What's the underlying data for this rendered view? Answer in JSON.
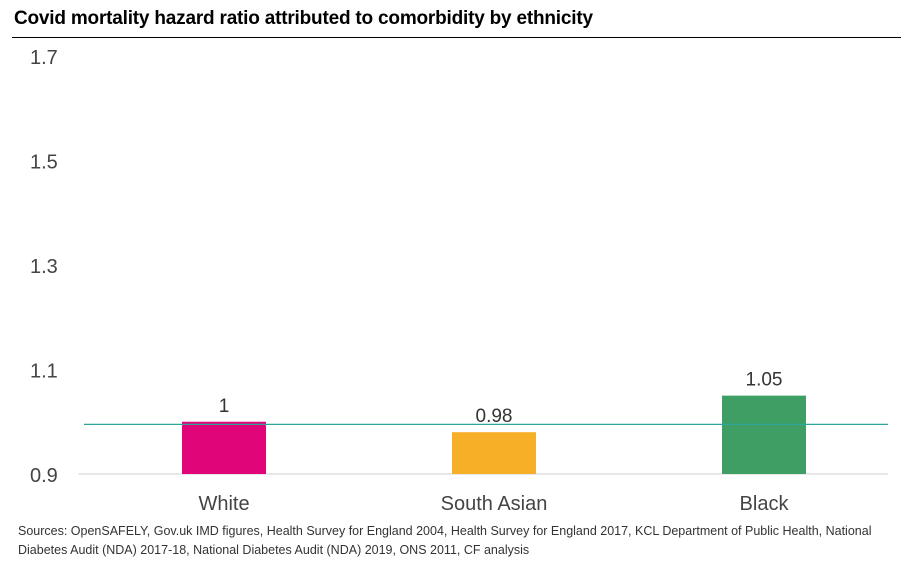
{
  "title": "Covid mortality hazard ratio attributed to comorbidity by ethnicity",
  "sources": "Sources: OpenSAFELY, Gov.uk IMD figures, Health Survey for England 2004, Health Survey for England 2017, KCL Department of Public Health, National Diabetes Audit (NDA) 2017-18, National Diabetes Audit (NDA) 2019, ONS 2011, CF analysis",
  "chart_data": {
    "type": "bar",
    "title": "Covid mortality hazard ratio attributed to comorbidity by ethnicity",
    "categories": [
      "White",
      "South Asian",
      "Black"
    ],
    "values": [
      1,
      0.98,
      1.05
    ],
    "data_labels": [
      "1",
      "0.98",
      "1.05"
    ],
    "colors": [
      "#e0067a",
      "#f7af27",
      "#3f9e63"
    ],
    "ylim": [
      0.9,
      1.7
    ],
    "yticks": [
      0.9,
      1.1,
      1.3,
      1.5,
      1.7
    ],
    "ytick_labels": [
      "0.9",
      "1.1",
      "1.3",
      "1.5",
      "1.7"
    ],
    "reference_line": {
      "value": 0.995,
      "color": "#2ea59b"
    },
    "xlabel": "",
    "ylabel": "",
    "grid": false,
    "legend": "none"
  }
}
